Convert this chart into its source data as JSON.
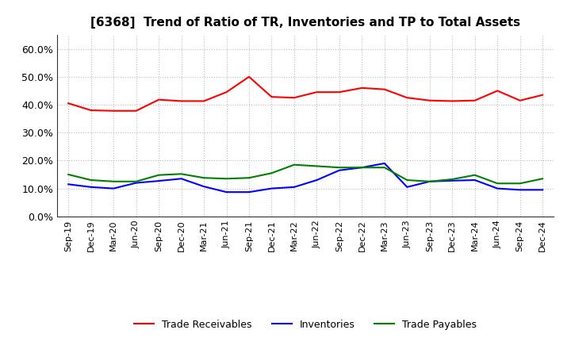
{
  "title": "[6368]  Trend of Ratio of TR, Inventories and TP to Total Assets",
  "x_labels": [
    "Sep-19",
    "Dec-19",
    "Mar-20",
    "Jun-20",
    "Sep-20",
    "Dec-20",
    "Mar-21",
    "Jun-21",
    "Sep-21",
    "Dec-21",
    "Mar-22",
    "Jun-22",
    "Sep-22",
    "Dec-22",
    "Mar-23",
    "Jun-23",
    "Sep-23",
    "Dec-23",
    "Mar-24",
    "Jun-24",
    "Sep-24",
    "Dec-24"
  ],
  "trade_receivables": [
    0.405,
    0.38,
    0.378,
    0.378,
    0.418,
    0.413,
    0.413,
    0.445,
    0.5,
    0.428,
    0.425,
    0.445,
    0.445,
    0.46,
    0.455,
    0.425,
    0.415,
    0.413,
    0.415,
    0.45,
    0.415,
    0.435
  ],
  "inventories": [
    0.115,
    0.105,
    0.1,
    0.12,
    0.127,
    0.135,
    0.107,
    0.087,
    0.087,
    0.1,
    0.105,
    0.13,
    0.165,
    0.175,
    0.19,
    0.105,
    0.125,
    0.128,
    0.13,
    0.1,
    0.095,
    0.095
  ],
  "trade_payables": [
    0.15,
    0.13,
    0.125,
    0.125,
    0.148,
    0.152,
    0.138,
    0.135,
    0.138,
    0.155,
    0.185,
    0.18,
    0.175,
    0.175,
    0.175,
    0.13,
    0.125,
    0.133,
    0.148,
    0.118,
    0.118,
    0.135
  ],
  "colors": {
    "trade_receivables": "#ff0000",
    "inventories": "#0000ff",
    "trade_payables": "#008000"
  },
  "ylim": [
    0.0,
    0.65
  ],
  "yticks": [
    0.0,
    0.1,
    0.2,
    0.3,
    0.4,
    0.5,
    0.6
  ],
  "background_color": "#ffffff",
  "grid_color": "#bbbbbb",
  "title_fontsize": 11,
  "tick_fontsize": 9,
  "legend_fontsize": 9
}
